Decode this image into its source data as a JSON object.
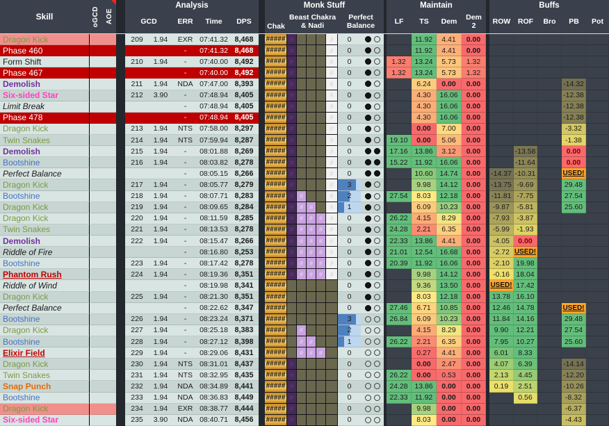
{
  "header": {
    "skill": "Skill",
    "ogcd": "oGCD",
    "aoe": "AOE",
    "groups": {
      "analysis": "Analysis",
      "monk_stuff": "Monk Stuff",
      "maintain": "Maintain",
      "buffs": "Buffs"
    },
    "cols": {
      "gcd": "GCD",
      "err": "ERR",
      "time": "Time",
      "dps": "DPS",
      "chak": "Chak",
      "beast_chakra": "Beast Chakra\n& Nadi",
      "perfect_balance": "Perfect\nBalance",
      "lf": "LF",
      "ts": "TS",
      "dem": "Dem",
      "dem2": "Dem\n2",
      "row": "ROW",
      "rof": "ROF",
      "bro": "Bro",
      "pb": "PB",
      "pot": "Pot"
    },
    "comment_marker": "red-triangle"
  },
  "colors": {
    "header_bg": "#3B414C",
    "gap": "#23272E",
    "empty_cell": "#3B414B",
    "band_light": "#D9E5E2",
    "band_dark": "#C7D6D2",
    "red_row": "#C00000",
    "salmon": "#F0908C",
    "scale_red": "#F8696B",
    "scale_yellow": "#FFE984",
    "scale_green": "#63BE7B",
    "buff_olive": "#6E6B52",
    "buff_yellow": "#EFE169",
    "used_bg": "#FFA42B",
    "bad_bg": "#F8696B",
    "bad_text": "#7A0000",
    "gold": "#E2A73C",
    "gold_light": "#F5CA67",
    "gold_dark": "#C08A28",
    "purple": "#47295A",
    "purple_hash": "#5E3D78",
    "olive": "#6A674F",
    "lavender": "#C9A3DF",
    "lavender_hash": "#E2CFF2",
    "white_cell": "#F2F2F2",
    "white_hash": "#D9D9D9",
    "bar_blue": "#4E81BD",
    "bar_bg": "#BDD7EE"
  },
  "chak_text": "#####",
  "hash": "#",
  "skill_styles": {
    "dragon_kick": {
      "color": "#7A9A44"
    },
    "twin_snakes": {
      "color": "#7A9A44"
    },
    "bootshine": {
      "color": "#4472C4"
    },
    "demolish": {
      "color": "#7030A0",
      "bold": true
    },
    "six_sided_star": {
      "color": "#FF40C0",
      "bold": true
    },
    "snap_punch": {
      "color": "#E26B0A",
      "bold": true
    },
    "phantom_rush": {
      "color": "#C00000",
      "bold": true,
      "underline": true
    },
    "elixir_field": {
      "color": "#C00000",
      "bold": true,
      "underline": true
    },
    "form_shift": {
      "color": "#1A1A1A"
    },
    "phase": {
      "color": "#FFFFFF"
    },
    "ability": {
      "color": "#1A1A1A",
      "italic": true
    }
  },
  "rows": [
    {
      "skill": "Dragon Kick",
      "type": "dragon_kick",
      "band": "salmon",
      "num": "209",
      "gcd": "1.94",
      "err": "EXR",
      "time": "07:41.32",
      "dps": "8,468",
      "ch": "POOOW",
      "pb": 0,
      "nadi": "FE",
      "ts": "11.92",
      "dem": "4.41",
      "dem2": "0.00"
    },
    {
      "skill": "Phase 460",
      "type": "phase",
      "band": "red",
      "err": "-",
      "time": "07:41.32",
      "dps": "8,468",
      "ch": "POOOW",
      "pb": 0,
      "nadi": "FE",
      "ts": "11.92",
      "dem": "4.41",
      "dem2": "0.00"
    },
    {
      "skill": "Form Shift",
      "type": "form_shift",
      "band": "light",
      "num": "210",
      "gcd": "1.94",
      "err": "-",
      "time": "07:40.00",
      "dps": "8,492",
      "ch": "POOOW",
      "pb": 0,
      "nadi": "FE",
      "lf": "1.32",
      "ts": "13.24",
      "dem": "5.73",
      "dem2": "1.32"
    },
    {
      "skill": "Phase 467",
      "type": "phase",
      "band": "red",
      "err": "-",
      "time": "07:40.00",
      "dps": "8,492",
      "ch": "POOOW",
      "pb": 0,
      "nadi": "FE",
      "lf": "1.32",
      "ts": "13.24",
      "dem": "5.73",
      "dem2": "1.32"
    },
    {
      "skill": "Demolish",
      "type": "demolish",
      "band": "light",
      "num": "211",
      "gcd": "1.94",
      "err": "NDA",
      "time": "07:47.00",
      "dps": "8,393",
      "ch": "POOOW",
      "pb": 0,
      "nadi": "FE",
      "ts": "6.24",
      "dem": "0.00",
      "dem2": "0.00",
      "bpb": "-14.32"
    },
    {
      "skill": "Six-sided Star",
      "type": "six_sided_star",
      "band": "dark",
      "num": "212",
      "gcd": "3.90",
      "err": "-",
      "time": "07:48.94",
      "dps": "8,405",
      "ch": "POOOW",
      "pb": 0,
      "nadi": "FE",
      "ts": "4.30",
      "dem": "16.06",
      "dem2": "0.00",
      "bpb": "-12.38"
    },
    {
      "skill": "Limit Break",
      "type": "ability",
      "band": "light",
      "err": "-",
      "time": "07:48.94",
      "dps": "8,405",
      "ch": "POOOW",
      "pb": 0,
      "nadi": "FE",
      "ts": "4.30",
      "dem": "16.06",
      "dem2": "0.00",
      "bpb": "-12.38"
    },
    {
      "skill": "Phase 478",
      "type": "phase",
      "band": "red",
      "err": "-",
      "time": "07:48.94",
      "dps": "8,405",
      "ch": "POOOW",
      "pb": 0,
      "nadi": "FE",
      "ts": "4.30",
      "dem": "16.06",
      "dem2": "0.00",
      "bpb": "-12.38"
    },
    {
      "skill": "Dragon Kick",
      "type": "dragon_kick",
      "band": "light",
      "num": "213",
      "gcd": "1.94",
      "err": "NTS",
      "time": "07:58.00",
      "dps": "8,297",
      "ch": "POOOW",
      "pb": 0,
      "nadi": "FE",
      "ts": "0.00",
      "dem": "7.00",
      "dem2": "0.00",
      "bpb": "-3.32"
    },
    {
      "skill": "Twin Snakes",
      "type": "twin_snakes",
      "band": "dark",
      "num": "214",
      "gcd": "1.94",
      "err": "NTS",
      "time": "07:59.94",
      "dps": "8,287",
      "ch": "POOOW",
      "pb": 0,
      "nadi": "FE",
      "lf": "19.10",
      "ts": "0.00",
      "dem": "5.06",
      "dem2": "0.00",
      "bpb": "-1.38"
    },
    {
      "skill": "Demolish",
      "type": "demolish",
      "band": "light",
      "num": "215",
      "gcd": "1.94",
      "err": "-",
      "time": "08:01.88",
      "dps": "8,269",
      "ch": "POOOW",
      "pb": 0,
      "nadi": "FF",
      "lf": "17.16",
      "ts": "13.86",
      "dem": "3.12",
      "dem2": "0.00",
      "brof": "-13.58",
      "bpb": "0.00"
    },
    {
      "skill": "Bootshine",
      "type": "bootshine",
      "band": "dark",
      "num": "216",
      "gcd": "1.94",
      "err": "-",
      "time": "08:03.82",
      "dps": "8,278",
      "ch": "POOOW",
      "pb": 0,
      "nadi": "FF",
      "lf": "15.22",
      "ts": "11.92",
      "dem": "16.06",
      "dem2": "0.00",
      "brof": "-11.64",
      "bpb": "0.00"
    },
    {
      "skill": "Perfect Balance",
      "type": "ability",
      "band": "light",
      "err": "-",
      "time": "08:05.15",
      "dps": "8,266",
      "ch": "POOOW",
      "pb": 0,
      "nadi": "FF",
      "ts": "10.60",
      "dem": "14.74",
      "dem2": "0.00",
      "brow": "-14.37",
      "brof": "-10.31",
      "bpb": "USED!"
    },
    {
      "skill": "Dragon Kick",
      "type": "dragon_kick",
      "band": "dark",
      "num": "217",
      "gcd": "1.94",
      "err": "-",
      "time": "08:05.77",
      "dps": "8,279",
      "ch": "POOOW",
      "pb": 3,
      "nadi": "FE",
      "ts": "9.98",
      "dem": "14.12",
      "dem2": "0.00",
      "brow": "-13.75",
      "brof": "-9.69",
      "bpb": "29.48"
    },
    {
      "skill": "Bootshine",
      "type": "bootshine",
      "band": "light",
      "num": "218",
      "gcd": "1.94",
      "err": "-",
      "time": "08:07.71",
      "dps": "8,283",
      "ch": "PLOOW",
      "pb": 2,
      "nadi": "FE",
      "lf": "27.54",
      "ts": "8.03",
      "dem": "12.18",
      "dem2": "0.00",
      "brow": "-11.81",
      "brof": "-7.75",
      "bpb": "27.54"
    },
    {
      "skill": "Dragon Kick",
      "type": "dragon_kick",
      "band": "dark",
      "num": "219",
      "gcd": "1.94",
      "err": "-",
      "time": "08:09.65",
      "dps": "8,284",
      "ch": "PLLOW",
      "pb": 1,
      "nadi": "FE",
      "ts": "6.09",
      "dem": "10.23",
      "dem2": "0.00",
      "brow": "-9.87",
      "brof": "-5.81",
      "bpb": "25.60"
    },
    {
      "skill": "Dragon Kick",
      "type": "dragon_kick",
      "band": "light",
      "num": "220",
      "gcd": "1.94",
      "err": "-",
      "time": "08:11.59",
      "dps": "8,285",
      "ch": "PLLLW",
      "pb": 0,
      "nadi": "FE",
      "lf": "26.22",
      "ts": "4.15",
      "dem": "8.29",
      "dem2": "0.00",
      "brow": "-7.93",
      "brof": "-3.87"
    },
    {
      "skill": "Twin Snakes",
      "type": "twin_snakes",
      "band": "dark",
      "num": "221",
      "gcd": "1.94",
      "err": "-",
      "time": "08:13.53",
      "dps": "8,278",
      "ch": "PLLLW",
      "pb": 0,
      "nadi": "FE",
      "lf": "24.28",
      "ts": "2.21",
      "dem": "6.35",
      "dem2": "0.00",
      "brow": "-5.99",
      "brof": "-1.93"
    },
    {
      "skill": "Demolish",
      "type": "demolish",
      "band": "light",
      "num": "222",
      "gcd": "1.94",
      "err": "-",
      "time": "08:15.47",
      "dps": "8,266",
      "ch": "PLLLW",
      "pb": 0,
      "nadi": "FE",
      "lf": "22.33",
      "ts": "13.86",
      "dem": "4.41",
      "dem2": "0.00",
      "brow": "-4.05",
      "brof": "0.00"
    },
    {
      "skill": "Riddle of Fire",
      "type": "ability",
      "band": "dark",
      "err": "-",
      "time": "08:16.80",
      "dps": "8,253",
      "ch": "PLLLW",
      "pb": 0,
      "nadi": "FE",
      "lf": "21.01",
      "ts": "12.54",
      "dem": "16.68",
      "dem2": "0.00",
      "brow": "-2.72",
      "brof": "USED!"
    },
    {
      "skill": "Bootshine",
      "type": "bootshine",
      "band": "light",
      "num": "223",
      "gcd": "1.94",
      "err": "-",
      "time": "08:17.42",
      "dps": "8,278",
      "ch": "PLLLW",
      "pb": 0,
      "nadi": "FE",
      "lf": "20.39",
      "ts": "11.92",
      "dem": "16.06",
      "dem2": "0.00",
      "brow": "-2.10",
      "brof": "19.98"
    },
    {
      "skill": "Phantom Rush",
      "type": "phantom_rush",
      "band": "dark",
      "num": "224",
      "gcd": "1.94",
      "err": "-",
      "time": "08:19.36",
      "dps": "8,351",
      "ch": "PLLLW",
      "pb": 0,
      "nadi": "FE",
      "ts": "9.98",
      "dem": "14.12",
      "dem2": "0.00",
      "brow": "-0.16",
      "brof": "18.04"
    },
    {
      "skill": "Riddle of Wind",
      "type": "ability",
      "band": "light",
      "err": "-",
      "time": "08:19.98",
      "dps": "8,341",
      "ch": "OOOOO",
      "pb": 0,
      "nadi": "FE",
      "ts": "9.36",
      "dem": "13.50",
      "dem2": "0.00",
      "brow": "USED!",
      "brof": "17.42"
    },
    {
      "skill": "Dragon Kick",
      "type": "dragon_kick",
      "band": "dark",
      "num": "225",
      "gcd": "1.94",
      "err": "-",
      "time": "08:21.30",
      "dps": "8,351",
      "ch": "OOOOO",
      "pb": 0,
      "nadi": "FE",
      "ts": "8.03",
      "dem": "12.18",
      "dem2": "0.00",
      "brow": "13.78",
      "brof": "16.10"
    },
    {
      "skill": "Perfect Balance",
      "type": "ability",
      "band": "light",
      "err": "-",
      "time": "08:22.62",
      "dps": "8,347",
      "ch": "OOOOO",
      "pb": 0,
      "nadi": "FE",
      "lf": "27.46",
      "ts": "6.71",
      "dem": "10.85",
      "dem2": "0.00",
      "brow": "12.46",
      "brof": "14.78",
      "bpb": "USED!"
    },
    {
      "skill": "Bootshine",
      "type": "bootshine",
      "band": "dark",
      "num": "226",
      "gcd": "1.94",
      "err": "-",
      "time": "08:23.24",
      "dps": "8,371",
      "ch": "OOOOO",
      "pb": 3,
      "nadi": "EE",
      "lf": "26.84",
      "ts": "6.09",
      "dem": "10.23",
      "dem2": "0.00",
      "brow": "11.84",
      "brof": "14.16",
      "bpb": "29.48"
    },
    {
      "skill": "Dragon Kick",
      "type": "dragon_kick",
      "band": "light",
      "num": "227",
      "gcd": "1.94",
      "err": "-",
      "time": "08:25.18",
      "dps": "8,383",
      "ch": "OLOOO",
      "pb": 2,
      "nadi": "EE",
      "ts": "4.15",
      "dem": "8.29",
      "dem2": "0.00",
      "brow": "9.90",
      "brof": "12.21",
      "bpb": "27.54"
    },
    {
      "skill": "Bootshine",
      "type": "bootshine",
      "band": "dark",
      "num": "228",
      "gcd": "1.94",
      "err": "-",
      "time": "08:27.12",
      "dps": "8,398",
      "ch": "OLLOO",
      "pb": 1,
      "nadi": "EE",
      "lf": "26.22",
      "ts": "2.21",
      "dem": "6.35",
      "dem2": "0.00",
      "brow": "7.95",
      "brof": "10.27",
      "bpb": "25.60"
    },
    {
      "skill": "Elixir Field",
      "type": "elixir_field",
      "band": "light",
      "num": "229",
      "gcd": "1.94",
      "err": "-",
      "time": "08:29.06",
      "dps": "8,431",
      "ch": "OLLLO",
      "pb": 0,
      "nadi": "EE",
      "ts": "0.27",
      "dem": "4.41",
      "dem2": "0.00",
      "brow": "6.01",
      "brof": "8.33"
    },
    {
      "skill": "Dragon Kick",
      "type": "dragon_kick",
      "band": "dark",
      "num": "230",
      "gcd": "1.94",
      "err": "NTS",
      "time": "08:31.01",
      "dps": "8,437",
      "ch": "POOOO",
      "pb": 0,
      "nadi": "EE",
      "ts": "0.00",
      "dem": "2.47",
      "dem2": "0.00",
      "brow": "4.07",
      "brof": "6.39",
      "bpb": "-14.14"
    },
    {
      "skill": "Twin Snakes",
      "type": "twin_snakes",
      "band": "light",
      "num": "231",
      "gcd": "1.94",
      "err": "NTS",
      "time": "08:32.95",
      "dps": "8,435",
      "ch": "POOOO",
      "pb": 0,
      "nadi": "EE",
      "lf": "26.22",
      "ts": "0.00",
      "dem": "0.53",
      "dem2": "0.00",
      "brow": "2.13",
      "brof": "4.45",
      "bpb": "-12.20"
    },
    {
      "skill": "Snap Punch",
      "type": "snap_punch",
      "band": "dark",
      "num": "232",
      "gcd": "1.94",
      "err": "NDA",
      "time": "08:34.89",
      "dps": "8,441",
      "ch": "POOOO",
      "pb": 0,
      "nadi": "EE",
      "lf": "24.28",
      "ts": "13.86",
      "dem": "0.00",
      "dem2": "0.00",
      "brow": "0.19",
      "brof": "2.51",
      "bpb": "-10.26"
    },
    {
      "skill": "Bootshine",
      "type": "bootshine",
      "band": "light",
      "num": "233",
      "gcd": "1.94",
      "err": "NDA",
      "time": "08:36.83",
      "dps": "8,449",
      "ch": "POOOO",
      "pb": 0,
      "nadi": "EE",
      "lf": "22.33",
      "ts": "11.92",
      "dem": "0.00",
      "dem2": "0.00",
      "brof": "0.56",
      "bpb": "-8.32"
    },
    {
      "skill": "Dragon Kick",
      "type": "dragon_kick",
      "band": "salmon",
      "num": "234",
      "gcd": "1.94",
      "err": "EXR",
      "time": "08:38.77",
      "dps": "8,444",
      "ch": "POOOO",
      "pb": 0,
      "nadi": "EE",
      "ts": "9.98",
      "dem": "0.00",
      "dem2": "0.00",
      "bpb": "-6.37"
    },
    {
      "skill": "Six-sided Star",
      "type": "six_sided_star",
      "band": "light",
      "num": "235",
      "gcd": "3.90",
      "err": "NDA",
      "time": "08:40.71",
      "dps": "8,456",
      "ch": "POOOO",
      "pb": 0,
      "nadi": "EE",
      "ts": "8.03",
      "dem": "0.00",
      "dem2": "0.00",
      "bpb": "-4.43"
    }
  ]
}
